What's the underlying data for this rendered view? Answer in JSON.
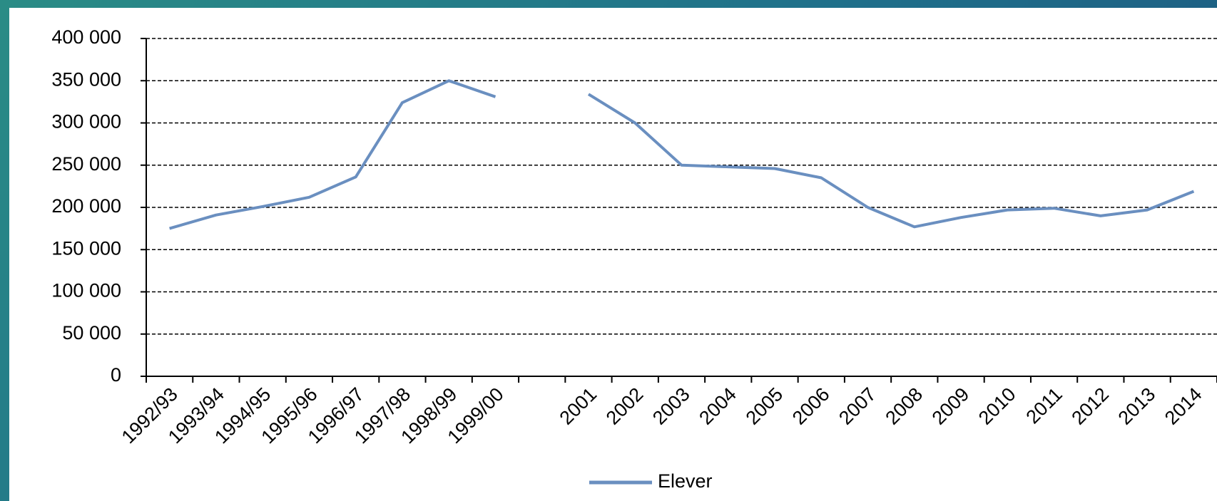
{
  "chart_data": {
    "type": "line",
    "categories": [
      "1992/93",
      "1993/94",
      "1994/95",
      "1995/96",
      "1996/97",
      "1997/98",
      "1998/99",
      "1999/00",
      null,
      "2001",
      "2002",
      "2003",
      "2004",
      "2005",
      "2006",
      "2007",
      "2008",
      "2009",
      "2010",
      "2011",
      "2012",
      "2013",
      "2014"
    ],
    "series": [
      {
        "name": "Elever",
        "color": "#6a8fc0",
        "values": [
          175000,
          191000,
          201000,
          212000,
          236000,
          324000,
          350000,
          331000,
          null,
          334000,
          300000,
          250000,
          248000,
          246000,
          235000,
          200000,
          177000,
          188000,
          197000,
          199000,
          190000,
          197000,
          219000
        ]
      }
    ],
    "ylim": [
      0,
      400000
    ],
    "yticks": [
      {
        "value": 0,
        "label": "0"
      },
      {
        "value": 50000,
        "label": "50 000"
      },
      {
        "value": 100000,
        "label": "100 000"
      },
      {
        "value": 150000,
        "label": "150 000"
      },
      {
        "value": 200000,
        "label": "200 000"
      },
      {
        "value": 250000,
        "label": "250 000"
      },
      {
        "value": 300000,
        "label": "300 000"
      },
      {
        "value": 350000,
        "label": "350 000"
      },
      {
        "value": 400000,
        "label": "400 000"
      }
    ],
    "grid": true
  }
}
